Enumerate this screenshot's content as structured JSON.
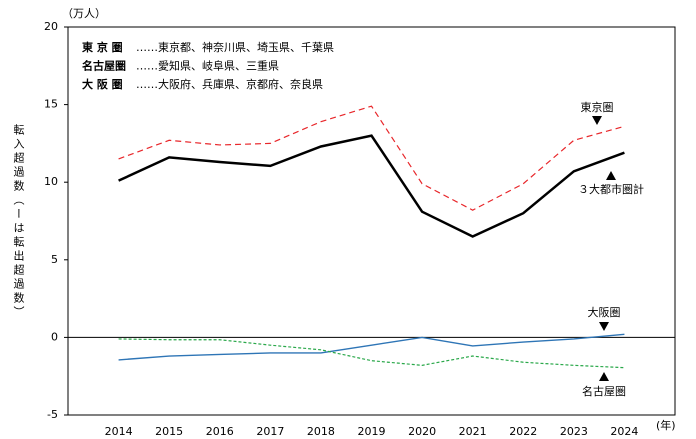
{
  "chart_data": {
    "type": "line",
    "unit_label": "（万人）",
    "x_label": "(年)",
    "y_label": "転入超過数（ーは転出超過数）",
    "categories": [
      "2014",
      "2015",
      "2016",
      "2017",
      "2018",
      "2019",
      "2020",
      "2021",
      "2022",
      "2023",
      "2024"
    ],
    "ylim": [
      -5,
      20
    ],
    "yticks": [
      -5,
      0,
      5,
      10,
      15,
      20
    ],
    "legend_box": [
      {
        "key": "東 京 圏",
        "members": "……東京都、神奈川県、埼玉県、千葉県"
      },
      {
        "key": "名古屋圏",
        "members": "……愛知県、岐阜県、三重県"
      },
      {
        "key": "大 阪 圏",
        "members": "……大阪府、兵庫県、京都府、奈良県"
      }
    ],
    "series": [
      {
        "name": "東京圏",
        "color": "#e8262a",
        "dash": "6,4",
        "width": 1.2,
        "values": [
          11.5,
          12.7,
          12.4,
          12.5,
          13.9,
          14.9,
          9.9,
          8.2,
          9.9,
          12.7,
          13.6
        ]
      },
      {
        "name": "３大都市圏計",
        "color": "#000000",
        "dash": "none",
        "width": 2.5,
        "values": [
          10.1,
          11.6,
          11.3,
          11.05,
          12.3,
          13.0,
          8.1,
          6.5,
          8.0,
          10.7,
          11.9
        ]
      },
      {
        "name": "大阪圏",
        "color": "#2e75b6",
        "dash": "none",
        "width": 1.4,
        "values": [
          -1.45,
          -1.2,
          -1.1,
          -1.0,
          -1.0,
          -0.5,
          0,
          -0.55,
          -0.3,
          -0.1,
          0.2
        ]
      },
      {
        "name": "名古屋圏",
        "color": "#2aa84a",
        "dash": "3,2",
        "width": 1.2,
        "values": [
          -0.1,
          -0.15,
          -0.15,
          -0.5,
          -0.8,
          -1.5,
          -1.8,
          -1.2,
          -1.6,
          -1.8,
          -1.95
        ]
      }
    ]
  }
}
